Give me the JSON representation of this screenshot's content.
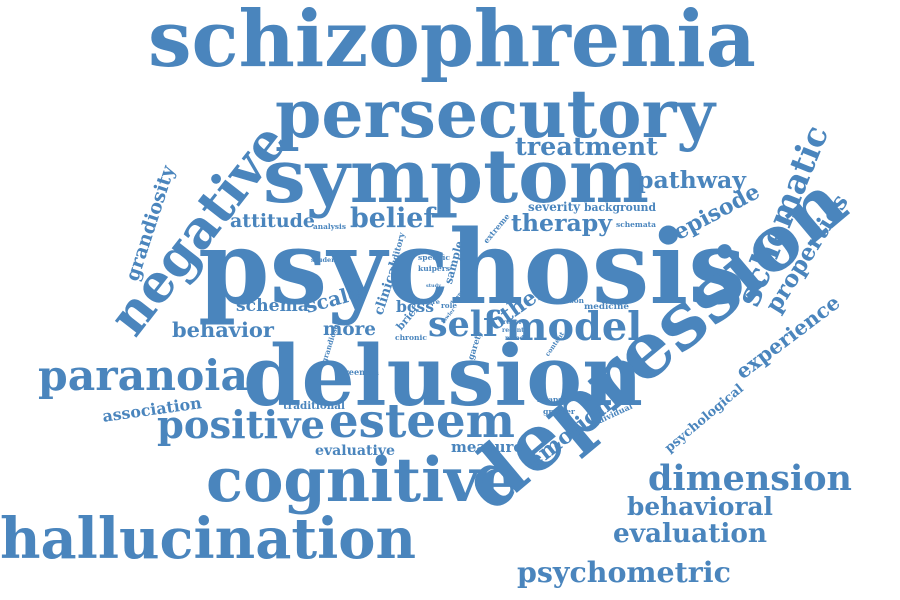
{
  "cloud": {
    "color": "#4A85BD",
    "words": [
      {
        "text": "schizophrenia"
      },
      {
        "text": "persecutory"
      },
      {
        "text": "symptom"
      },
      {
        "text": "treatment"
      },
      {
        "text": "pathway"
      },
      {
        "text": "negative"
      },
      {
        "text": "grandiosity"
      },
      {
        "text": "attitude"
      },
      {
        "text": "analysis"
      },
      {
        "text": "belief"
      },
      {
        "text": "therapy"
      },
      {
        "text": "severity"
      },
      {
        "text": "background"
      },
      {
        "text": "episode"
      },
      {
        "text": "schemata"
      },
      {
        "text": "extreme"
      },
      {
        "text": "sample"
      },
      {
        "text": "auditory"
      },
      {
        "text": "specific"
      },
      {
        "text": "kuipers"
      },
      {
        "text": "student"
      },
      {
        "text": "psychosis"
      },
      {
        "text": "schematic"
      },
      {
        "text": "properties"
      },
      {
        "text": "depression"
      },
      {
        "text": "schema"
      },
      {
        "text": "scale"
      },
      {
        "text": "clinical"
      },
      {
        "text": "study"
      },
      {
        "text": "bcss"
      },
      {
        "text": "core"
      },
      {
        "text": "role"
      },
      {
        "text": "lower"
      },
      {
        "text": "person"
      },
      {
        "text": "medicine"
      },
      {
        "text": "other"
      },
      {
        "text": "self"
      },
      {
        "text": "model"
      },
      {
        "text": "behavior"
      },
      {
        "text": "more"
      },
      {
        "text": "brief"
      },
      {
        "text": "fowler"
      },
      {
        "text": "report"
      },
      {
        "text": "recent"
      },
      {
        "text": "chronic"
      },
      {
        "text": "mood"
      },
      {
        "text": "grandiose"
      },
      {
        "text": "garety"
      },
      {
        "text": "content"
      },
      {
        "text": "experience"
      },
      {
        "text": "paranoia"
      },
      {
        "text": "delusion"
      },
      {
        "text": "freeman"
      },
      {
        "text": "association"
      },
      {
        "text": "traditional"
      },
      {
        "text": "positive"
      },
      {
        "text": "esteem"
      },
      {
        "text": "relapse"
      },
      {
        "text": "greater"
      },
      {
        "text": "individual"
      },
      {
        "text": "psychological"
      },
      {
        "text": "evaluative"
      },
      {
        "text": "measure"
      },
      {
        "text": "emotion"
      },
      {
        "text": "cognitive"
      },
      {
        "text": "dimension"
      },
      {
        "text": "behavioral"
      },
      {
        "text": "evaluation"
      },
      {
        "text": "hallucination"
      },
      {
        "text": "psychometric"
      }
    ]
  }
}
